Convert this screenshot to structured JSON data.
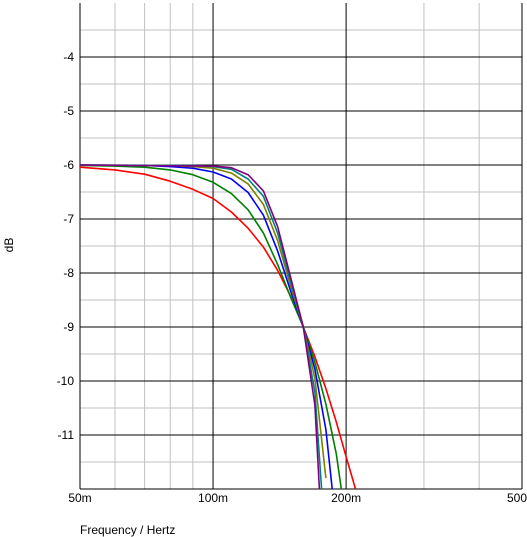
{
  "chart_data": {
    "type": "line",
    "title": "",
    "xlabel": "Frequency / Hertz",
    "ylabel": "dB",
    "x_scale": "log",
    "xlim": [
      0.05,
      0.5
    ],
    "ylim": [
      -12,
      -3
    ],
    "grid": true,
    "x_major_ticks": [
      {
        "value": 0.05,
        "label": "50m"
      },
      {
        "value": 0.1,
        "label": "100m"
      },
      {
        "value": 0.2,
        "label": "200m"
      },
      {
        "value": 0.5,
        "label": "500m"
      }
    ],
    "x_minor_ticks": [
      0.06,
      0.07,
      0.08,
      0.09,
      0.3,
      0.4
    ],
    "y_major_ticks": [
      {
        "value": -4,
        "label": "-4"
      },
      {
        "value": -5,
        "label": "-5"
      },
      {
        "value": -6,
        "label": "-6"
      },
      {
        "value": -7,
        "label": "-7"
      },
      {
        "value": -8,
        "label": "-8"
      },
      {
        "value": -9,
        "label": "-9"
      },
      {
        "value": -10,
        "label": "-10"
      },
      {
        "value": -11,
        "label": "-11"
      }
    ],
    "y_minor_ticks": [
      -3.5,
      -4.5,
      -5.5,
      -6.5,
      -7.5,
      -8.5,
      -9.5,
      -10.5,
      -11.5
    ],
    "series": [
      {
        "color": "#ff0000",
        "x": [
          0.05,
          0.06,
          0.07,
          0.08,
          0.09,
          0.1,
          0.11,
          0.12,
          0.13,
          0.14,
          0.15,
          0.16,
          0.17,
          0.18,
          0.19,
          0.2,
          0.21
        ],
        "y": [
          -6.04,
          -6.09,
          -6.17,
          -6.3,
          -6.45,
          -6.62,
          -6.87,
          -7.17,
          -7.52,
          -7.95,
          -8.44,
          -9.0,
          -9.55,
          -10.14,
          -10.76,
          -11.4,
          -12.0
        ]
      },
      {
        "color": "#008000",
        "x": [
          0.05,
          0.06,
          0.07,
          0.08,
          0.09,
          0.1,
          0.11,
          0.12,
          0.13,
          0.14,
          0.15,
          0.16,
          0.17,
          0.18,
          0.19,
          0.195
        ],
        "y": [
          -6.01,
          -6.02,
          -6.04,
          -6.09,
          -6.18,
          -6.32,
          -6.53,
          -6.83,
          -7.26,
          -7.84,
          -8.46,
          -9.0,
          -9.65,
          -10.43,
          -11.35,
          -12.0
        ]
      },
      {
        "color": "#0000ff",
        "x": [
          0.05,
          0.07,
          0.08,
          0.09,
          0.1,
          0.11,
          0.12,
          0.13,
          0.14,
          0.15,
          0.16,
          0.17,
          0.18,
          0.186
        ],
        "y": [
          -6.0,
          -6.01,
          -6.03,
          -6.06,
          -6.13,
          -6.26,
          -6.51,
          -6.93,
          -7.59,
          -8.35,
          -9.0,
          -9.78,
          -10.9,
          -12.0
        ]
      },
      {
        "color": "#808000",
        "x": [
          0.05,
          0.08,
          0.09,
          0.1,
          0.11,
          0.12,
          0.13,
          0.14,
          0.15,
          0.16,
          0.17,
          0.18
        ],
        "y": [
          -6.0,
          -6.01,
          -6.03,
          -6.06,
          -6.15,
          -6.35,
          -6.73,
          -7.4,
          -8.26,
          -9.0,
          -9.95,
          -11.8
        ]
      },
      {
        "color": "#008080",
        "x": [
          0.05,
          0.09,
          0.1,
          0.11,
          0.12,
          0.13,
          0.14,
          0.15,
          0.16,
          0.17,
          0.176
        ],
        "y": [
          -6.0,
          -6.01,
          -6.03,
          -6.08,
          -6.26,
          -6.58,
          -7.26,
          -8.18,
          -9.0,
          -10.2,
          -12.0
        ]
      },
      {
        "color": "#800080",
        "x": [
          0.05,
          0.1,
          0.11,
          0.12,
          0.13,
          0.14,
          0.15,
          0.16,
          0.17,
          0.174
        ],
        "y": [
          -6.0,
          -6.02,
          -6.05,
          -6.18,
          -6.48,
          -7.14,
          -8.1,
          -9.0,
          -10.45,
          -12.0
        ]
      }
    ]
  }
}
